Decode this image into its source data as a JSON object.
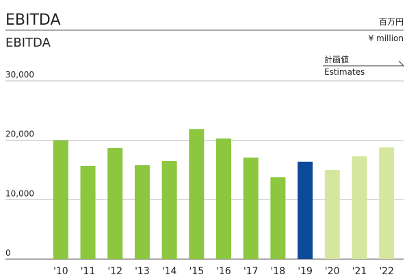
{
  "chart_data": {
    "type": "bar",
    "title": "EBITDA",
    "subtitle": "EBITDA",
    "unit_label_ja": "百万円",
    "unit_label": "¥ million",
    "estimates_label_ja": "計画値",
    "estimates_label": "Estimates",
    "categories": [
      "'10",
      "'11",
      "'12",
      "'13",
      "'14",
      "'15",
      "'16",
      "'17",
      "'18",
      "'19",
      "'20",
      "'21",
      "'22"
    ],
    "values": [
      20000,
      15700,
      18700,
      15800,
      16500,
      21900,
      20300,
      17100,
      13800,
      16400,
      15000,
      17300,
      18800
    ],
    "colors": [
      "#8dc63f",
      "#8dc63f",
      "#8dc63f",
      "#8dc63f",
      "#8dc63f",
      "#8dc63f",
      "#8dc63f",
      "#8dc63f",
      "#8dc63f",
      "#0d4a9a",
      "#d5e79e",
      "#d5e79e",
      "#d5e79e"
    ],
    "ylim": [
      0,
      30000
    ],
    "yticks": [
      0,
      {
        "value": 10000,
        "label": "10,000"
      },
      {
        "value": 20000,
        "label": "20,000"
      },
      {
        "value": 30000,
        "label": "30,000"
      }
    ],
    "grid": true
  }
}
